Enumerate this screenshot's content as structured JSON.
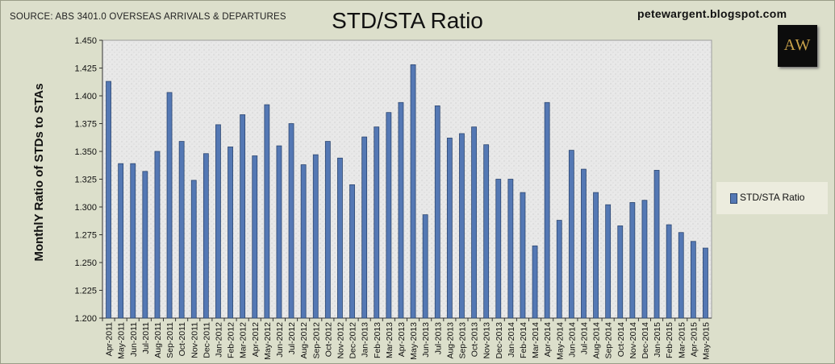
{
  "header": {
    "source": "SOURCE: ABS 3401.0 OVERSEAS ARRIVALS & DEPARTURES",
    "title": "STD/STA Ratio",
    "site": "petewargent.blogspot.com",
    "logo_text": "AW"
  },
  "legend": {
    "label": "STD/STA Ratio"
  },
  "colors": {
    "bar": "#5478b4",
    "bar_edge": "#2c4670",
    "plot_bg": "#e6e6e6"
  },
  "chart_data": {
    "type": "bar",
    "title": "STD/STA Ratio",
    "ylabel": "MonthlY Ratio of STDs to STAs",
    "xlabel": "",
    "ylim": [
      1.2,
      1.45
    ],
    "yticks": [
      "1.450",
      "1.425",
      "1.400",
      "1.375",
      "1.350",
      "1.325",
      "1.300",
      "1.275",
      "1.250",
      "1.225",
      "1.200"
    ],
    "grid": false,
    "legend_position": "right",
    "categories": [
      "Apr-2011",
      "May-2011",
      "Jun-2011",
      "Jul-2011",
      "Aug-2011",
      "Sep-2011",
      "Oct-2011",
      "Nov-2011",
      "Dec-2011",
      "Jan-2012",
      "Feb-2012",
      "Mar-2012",
      "Apr-2012",
      "May-2012",
      "Jun-2012",
      "Jul-2012",
      "Aug-2012",
      "Sep-2012",
      "Oct-2012",
      "Nov-2012",
      "Dec-2012",
      "Jan-2013",
      "Feb-2013",
      "Mar-2013",
      "Apr-2013",
      "May-2013",
      "Jun-2013",
      "Jul-2013",
      "Aug-2013",
      "Sep-2013",
      "Oct-2013",
      "Nov-2013",
      "Dec-2013",
      "Jan-2014",
      "Feb-2014",
      "Mar-2014",
      "Apr-2014",
      "May-2014",
      "Jun-2014",
      "Jul-2014",
      "Aug-2014",
      "Sep-2014",
      "Oct-2014",
      "Nov-2014",
      "Dec-2014",
      "Jan-2015",
      "Feb-2015",
      "Mar-2015",
      "Apr-2015",
      "May-2015"
    ],
    "series": [
      {
        "name": "STD/STA Ratio",
        "values": [
          1.413,
          1.339,
          1.339,
          1.332,
          1.35,
          1.403,
          1.359,
          1.324,
          1.348,
          1.374,
          1.354,
          1.383,
          1.346,
          1.392,
          1.355,
          1.375,
          1.338,
          1.347,
          1.359,
          1.344,
          1.32,
          1.363,
          1.372,
          1.385,
          1.394,
          1.428,
          1.293,
          1.391,
          1.362,
          1.366,
          1.372,
          1.356,
          1.325,
          1.325,
          1.313,
          1.265,
          1.394,
          1.288,
          1.351,
          1.334,
          1.313,
          1.302,
          1.283,
          1.304,
          1.306,
          1.333,
          1.284,
          1.277,
          1.269,
          1.263
        ]
      }
    ]
  }
}
